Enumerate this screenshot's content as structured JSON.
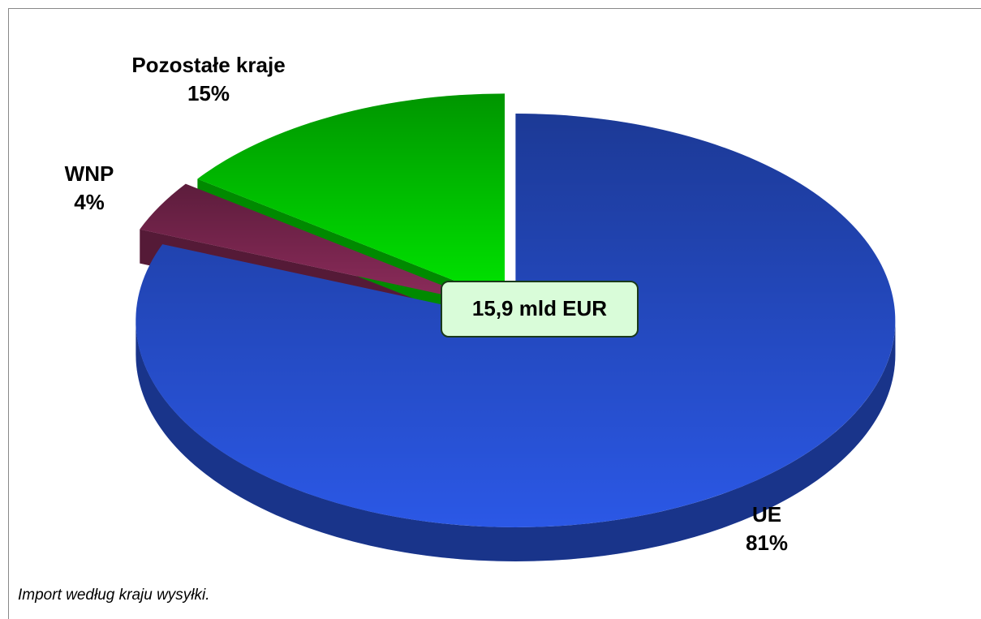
{
  "chart_data": {
    "type": "pie",
    "categories": [
      "UE",
      "WNP",
      "Pozostałe kraje"
    ],
    "values": [
      81,
      4,
      15
    ],
    "value_labels": [
      "81%",
      "4%",
      "15%"
    ],
    "colors": [
      "#2b58e6",
      "#8e2c5c",
      "#00e600"
    ],
    "annotation": "15,9 mld EUR",
    "caption": "Import według kraju wysyłki."
  }
}
